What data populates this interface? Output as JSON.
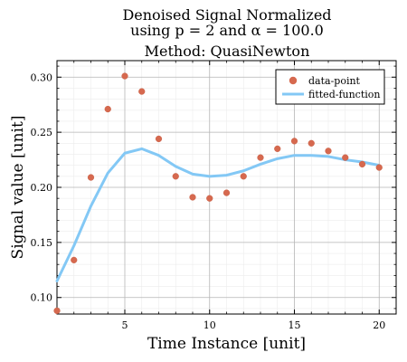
{
  "chart_data": {
    "type": "scatter",
    "title_lines": [
      "Denoised Signal  Normalized",
      "using p = 2 and α = 100.0",
      "Method: QuasiNewton"
    ],
    "xlabel": "Time Instance [unit]",
    "ylabel": "Signal value [unit]",
    "xlim": [
      1,
      21
    ],
    "ylim": [
      0.085,
      0.315
    ],
    "xticks": [
      5,
      10,
      15,
      20
    ],
    "yticks": [
      0.1,
      0.15,
      0.2,
      0.25,
      0.3
    ],
    "grid": true,
    "legend_position": "top-right",
    "series": [
      {
        "name": "data-point",
        "kind": "scatter",
        "color": "#d6694f",
        "x": [
          1,
          2,
          3,
          4,
          5,
          6,
          7,
          8,
          9,
          10,
          11,
          12,
          13,
          14,
          15,
          16,
          17,
          18,
          19,
          20
        ],
        "y": [
          0.088,
          0.134,
          0.209,
          0.271,
          0.301,
          0.287,
          0.244,
          0.21,
          0.191,
          0.19,
          0.195,
          0.21,
          0.227,
          0.235,
          0.242,
          0.24,
          0.233,
          0.227,
          0.221,
          0.218
        ]
      },
      {
        "name": "fitted-function",
        "kind": "line",
        "color": "#83c8f5",
        "x": [
          1,
          2,
          3,
          4,
          5,
          6,
          7,
          8,
          9,
          10,
          11,
          12,
          13,
          14,
          15,
          16,
          17,
          18,
          19,
          20
        ],
        "y": [
          0.115,
          0.147,
          0.183,
          0.213,
          0.231,
          0.235,
          0.229,
          0.219,
          0.212,
          0.21,
          0.211,
          0.215,
          0.221,
          0.226,
          0.229,
          0.229,
          0.228,
          0.225,
          0.223,
          0.22
        ]
      }
    ]
  }
}
